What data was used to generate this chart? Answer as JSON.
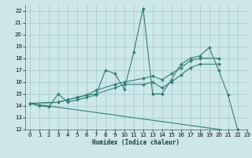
{
  "xlabel": "Humidex (Indice chaleur)",
  "xlim": [
    -0.5,
    23
  ],
  "ylim": [
    12,
    22.5
  ],
  "xticks": [
    0,
    1,
    2,
    3,
    4,
    5,
    6,
    7,
    8,
    9,
    10,
    11,
    12,
    13,
    14,
    15,
    16,
    17,
    18,
    19,
    20,
    21,
    22,
    23
  ],
  "yticks": [
    12,
    13,
    14,
    15,
    16,
    17,
    18,
    19,
    20,
    21,
    22
  ],
  "bg_color": "#cce8ea",
  "grid_color": "#aacdd0",
  "line_color": "#2e7d72",
  "series": [
    {
      "x": [
        0,
        1,
        2,
        3,
        4,
        5,
        6,
        7,
        8,
        9,
        10,
        11,
        12,
        13,
        14,
        15,
        16,
        17,
        18,
        19,
        20,
        21,
        22
      ],
      "y": [
        14.2,
        14.0,
        13.9,
        15.0,
        14.3,
        14.5,
        14.7,
        14.9,
        17.0,
        16.7,
        15.4,
        18.5,
        22.2,
        15.0,
        15.0,
        16.2,
        17.5,
        18.0,
        18.2,
        18.9,
        17.0,
        14.9,
        12.0
      ],
      "markers": true
    },
    {
      "x": [
        0,
        3,
        4,
        5,
        6,
        7,
        9,
        10,
        12,
        13,
        14,
        15,
        16,
        17,
        18,
        20
      ],
      "y": [
        14.2,
        14.3,
        14.5,
        14.7,
        14.9,
        15.3,
        15.8,
        16.0,
        16.3,
        16.5,
        16.2,
        16.7,
        17.2,
        17.8,
        18.0,
        18.0
      ],
      "markers": true
    },
    {
      "x": [
        0,
        3,
        4,
        5,
        6,
        7,
        9,
        10,
        12,
        13,
        14,
        15,
        16,
        17,
        18,
        20
      ],
      "y": [
        14.2,
        14.3,
        14.5,
        14.7,
        14.9,
        15.0,
        15.5,
        15.8,
        15.8,
        16.0,
        15.5,
        16.0,
        16.6,
        17.2,
        17.5,
        17.5
      ],
      "markers": true
    },
    {
      "x": [
        0,
        22
      ],
      "y": [
        14.2,
        11.8
      ],
      "markers": false
    }
  ]
}
